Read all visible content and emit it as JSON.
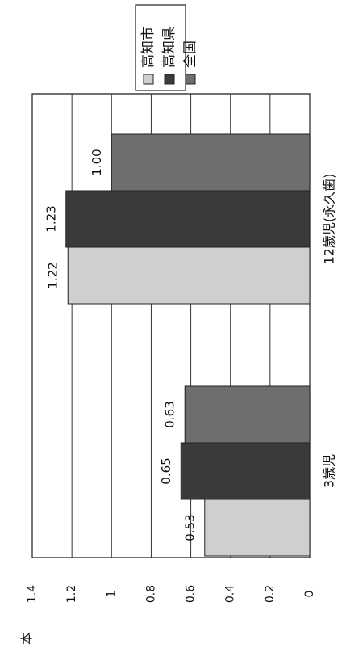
{
  "chart_data": {
    "type": "bar",
    "orientation": "rotated-90-clockwise",
    "categories": [
      "3歳児",
      "12歳児(永久歯)"
    ],
    "series": [
      {
        "name": "高知市",
        "color": "#cfcfcf",
        "values": [
          0.53,
          1.22
        ],
        "labels": [
          "0.53",
          "1.22"
        ]
      },
      {
        "name": "高知県",
        "color": "#3a3a3a",
        "values": [
          0.65,
          1.23
        ],
        "labels": [
          "0.65",
          "1.23"
        ]
      },
      {
        "name": "全国",
        "color": "#6e6e6e",
        "values": [
          0.63,
          1.0
        ],
        "labels": [
          "0.63",
          "1.00"
        ]
      }
    ],
    "ylabel": "本",
    "ylim": [
      0,
      1.4
    ],
    "yticks": [
      0,
      0.2,
      0.4,
      0.6,
      0.8,
      1,
      1.2,
      1.4
    ],
    "ytick_labels": [
      "0",
      "0.2",
      "0.4",
      "0.6",
      "0.8",
      "1",
      "1.2",
      "1.4"
    ],
    "grid": true,
    "legend_position": "top-right"
  }
}
